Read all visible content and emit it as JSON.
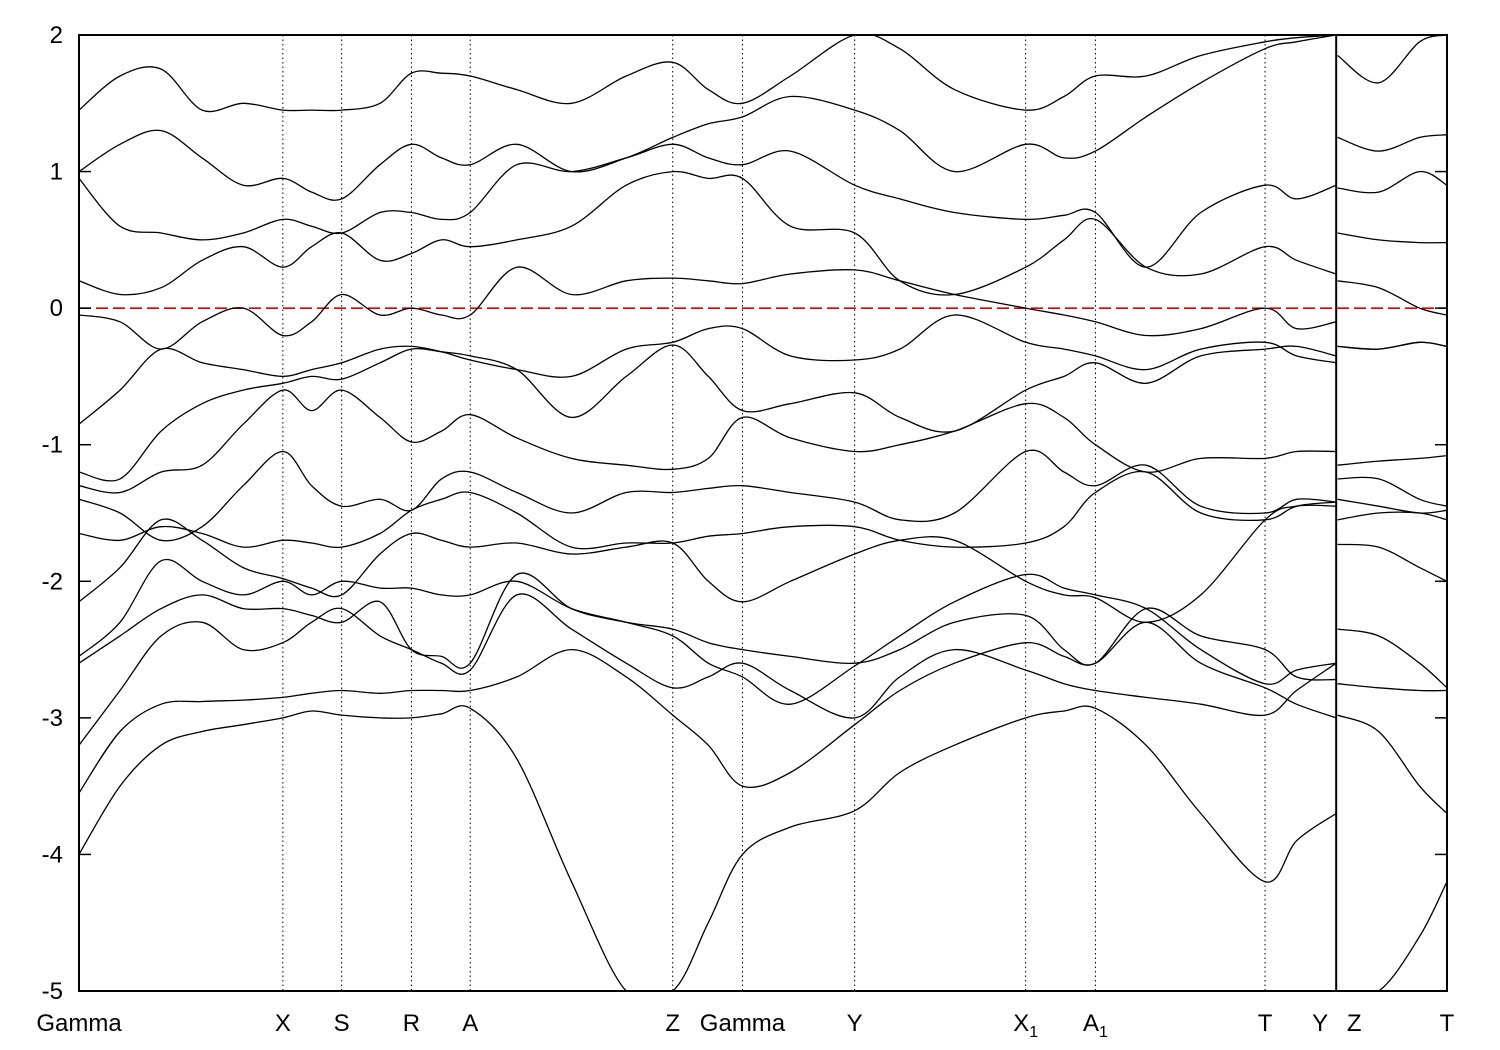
{
  "chart_data": {
    "type": "line",
    "title": "",
    "xlabel": "",
    "ylabel": "",
    "ylim": [
      -5,
      2
    ],
    "xlim": [
      0,
      10.0
    ],
    "yticks": [
      "2",
      "1",
      "0",
      "-1",
      "-2",
      "-3",
      "-4",
      "-5"
    ],
    "ytick_values": [
      2,
      1,
      0,
      -1,
      -2,
      -3,
      -4,
      -5
    ],
    "fermi_level": 0,
    "fermi_color": "#dd0000",
    "line_color": "#000000",
    "kpoints": [
      {
        "pos": 0.0,
        "name": "Gamma",
        "sub": ""
      },
      {
        "pos": 1.49,
        "name": "X",
        "sub": ""
      },
      {
        "pos": 1.92,
        "name": "S",
        "sub": ""
      },
      {
        "pos": 2.43,
        "name": "R",
        "sub": ""
      },
      {
        "pos": 2.86,
        "name": "A",
        "sub": ""
      },
      {
        "pos": 4.34,
        "name": "Z",
        "sub": ""
      },
      {
        "pos": 4.85,
        "name": "Gamma",
        "sub": ""
      },
      {
        "pos": 5.67,
        "name": "Y",
        "sub": ""
      },
      {
        "pos": 6.92,
        "name": "X",
        "sub": "1"
      },
      {
        "pos": 7.43,
        "name": "A",
        "sub": "1"
      },
      {
        "pos": 8.67,
        "name": "T",
        "sub": ""
      },
      {
        "pos": 9.19,
        "name": "Y",
        "sub": ""
      },
      {
        "pos": 9.19,
        "name": "Z",
        "sub": ""
      },
      {
        "pos": 10.0,
        "name": "T",
        "sub": ""
      }
    ],
    "segment_break": 9.19,
    "series": [
      {
        "x": [
          0,
          0.3,
          0.6,
          0.9,
          1.2,
          1.49,
          1.7,
          1.92,
          2.2,
          2.43,
          2.65,
          2.86,
          3.2,
          3.6,
          4.0,
          4.34,
          4.6,
          4.85,
          5.2,
          5.67,
          6.0,
          6.4,
          6.92,
          7.2,
          7.43,
          7.8,
          8.2,
          8.67,
          8.9,
          9.19,
          9.2,
          9.5,
          9.8,
          10.0
        ],
        "y": [
          -4.0,
          -3.5,
          -3.2,
          -3.1,
          -3.05,
          -3.0,
          -2.95,
          -2.98,
          -3.0,
          -3.0,
          -2.97,
          -2.93,
          -3.3,
          -4.2,
          -5.0,
          -5.0,
          -4.5,
          -4.0,
          -3.8,
          -3.68,
          -3.4,
          -3.2,
          -3.0,
          -2.95,
          -2.93,
          -3.2,
          -3.7,
          -4.2,
          -3.9,
          -3.7,
          -5.0,
          -5.0,
          -4.6,
          -4.2
        ]
      },
      {
        "x": [
          0,
          0.3,
          0.6,
          0.9,
          1.2,
          1.49,
          1.7,
          1.92,
          2.2,
          2.43,
          2.65,
          2.86,
          3.2,
          3.6,
          4.0,
          4.34,
          4.6,
          4.85,
          5.2,
          5.67,
          6.0,
          6.4,
          6.92,
          7.2,
          7.43,
          7.8,
          8.2,
          8.67,
          8.9,
          9.19,
          9.2,
          9.5,
          9.8,
          10.0
        ],
        "y": [
          -3.55,
          -3.1,
          -2.9,
          -2.88,
          -2.87,
          -2.85,
          -2.82,
          -2.8,
          -2.82,
          -2.8,
          -2.8,
          -2.8,
          -2.7,
          -2.5,
          -2.7,
          -2.98,
          -3.2,
          -3.5,
          -3.4,
          -3.05,
          -2.8,
          -2.6,
          -2.45,
          -2.55,
          -2.6,
          -2.3,
          -2.6,
          -2.78,
          -2.9,
          -3.0,
          -2.98,
          -3.1,
          -3.5,
          -3.7
        ]
      },
      {
        "x": [
          0,
          0.3,
          0.6,
          0.9,
          1.2,
          1.49,
          1.7,
          1.92,
          2.2,
          2.43,
          2.65,
          2.86,
          3.2,
          3.6,
          4.0,
          4.34,
          4.6,
          4.85,
          5.2,
          5.67,
          6.0,
          6.4,
          6.92,
          7.2,
          7.43,
          7.8,
          8.2,
          8.67,
          8.9,
          9.19,
          9.2,
          9.5,
          9.8,
          10.0
        ],
        "y": [
          -3.2,
          -2.8,
          -2.4,
          -2.3,
          -2.5,
          -2.45,
          -2.3,
          -2.2,
          -2.4,
          -2.5,
          -2.6,
          -2.65,
          -2.1,
          -2.35,
          -2.6,
          -2.78,
          -2.7,
          -2.6,
          -2.8,
          -3.0,
          -2.7,
          -2.5,
          -2.65,
          -2.75,
          -2.8,
          -2.85,
          -2.9,
          -2.98,
          -2.8,
          -2.6,
          -2.75,
          -2.78,
          -2.8,
          -2.8
        ]
      },
      {
        "x": [
          0,
          0.3,
          0.6,
          0.9,
          1.2,
          1.49,
          1.7,
          1.92,
          2.2,
          2.43,
          2.65,
          2.86,
          3.2,
          3.6,
          4.0,
          4.34,
          4.6,
          4.85,
          5.2,
          5.67,
          6.0,
          6.4,
          6.92,
          7.2,
          7.43,
          7.8,
          8.2,
          8.67,
          8.9,
          9.19,
          9.2,
          9.5,
          9.8,
          10.0
        ],
        "y": [
          -2.6,
          -2.4,
          -2.2,
          -2.1,
          -2.2,
          -2.2,
          -2.25,
          -2.3,
          -2.15,
          -2.5,
          -2.55,
          -2.6,
          -1.95,
          -2.2,
          -2.3,
          -2.35,
          -2.45,
          -2.5,
          -2.55,
          -2.6,
          -2.5,
          -2.3,
          -2.25,
          -2.5,
          -2.6,
          -2.2,
          -2.4,
          -2.5,
          -2.7,
          -2.72,
          -2.35,
          -2.4,
          -2.6,
          -2.78
        ]
      },
      {
        "x": [
          0,
          0.3,
          0.6,
          0.9,
          1.2,
          1.49,
          1.7,
          1.92,
          2.2,
          2.43,
          2.65,
          2.86,
          3.2,
          3.6,
          4.0,
          4.34,
          4.6,
          4.85,
          5.2,
          5.67,
          6.0,
          6.4,
          6.92,
          7.2,
          7.43,
          7.8,
          8.2,
          8.67,
          8.9,
          9.19,
          9.2,
          9.5,
          9.8,
          10.0
        ],
        "y": [
          -2.55,
          -2.3,
          -1.85,
          -2.0,
          -2.1,
          -2.0,
          -2.1,
          -2.0,
          -2.05,
          -2.05,
          -2.1,
          -2.1,
          -2.0,
          -2.2,
          -2.3,
          -2.4,
          -2.6,
          -2.7,
          -2.9,
          -2.62,
          -2.4,
          -2.15,
          -1.95,
          -2.05,
          -2.1,
          -2.2,
          -2.5,
          -2.75,
          -2.65,
          -2.6,
          -1.73,
          -1.75,
          -1.9,
          -2.0
        ]
      },
      {
        "x": [
          0,
          0.3,
          0.6,
          0.9,
          1.2,
          1.49,
          1.7,
          1.92,
          2.2,
          2.43,
          2.65,
          2.86,
          3.2,
          3.6,
          4.0,
          4.34,
          4.6,
          4.85,
          5.2,
          5.67,
          6.0,
          6.4,
          6.92,
          7.2,
          7.43,
          7.8,
          8.2,
          8.67,
          8.9,
          9.19,
          9.2,
          9.5,
          9.8,
          10.0
        ],
        "y": [
          -2.15,
          -1.9,
          -1.55,
          -1.7,
          -1.9,
          -1.98,
          -2.05,
          -2.1,
          -1.8,
          -1.65,
          -1.7,
          -1.75,
          -1.72,
          -1.8,
          -1.75,
          -1.72,
          -2.0,
          -2.15,
          -2.0,
          -1.8,
          -1.7,
          -1.7,
          -2.0,
          -2.1,
          -2.12,
          -2.3,
          -2.1,
          -1.55,
          -1.45,
          -1.45,
          -1.55,
          -1.5,
          -1.5,
          -1.55
        ]
      },
      {
        "x": [
          0,
          0.3,
          0.6,
          0.9,
          1.2,
          1.49,
          1.7,
          1.92,
          2.2,
          2.43,
          2.65,
          2.86,
          3.2,
          3.6,
          4.0,
          4.34,
          4.6,
          4.85,
          5.2,
          5.67,
          6.0,
          6.4,
          6.92,
          7.2,
          7.43,
          7.8,
          8.2,
          8.67,
          8.9,
          9.19,
          9.2,
          9.5,
          9.8,
          10.0
        ],
        "y": [
          -1.65,
          -1.7,
          -1.6,
          -1.65,
          -1.75,
          -1.7,
          -1.72,
          -1.75,
          -1.65,
          -1.48,
          -1.4,
          -1.35,
          -1.5,
          -1.75,
          -1.72,
          -1.72,
          -1.67,
          -1.65,
          -1.6,
          -1.6,
          -1.7,
          -1.75,
          -1.72,
          -1.6,
          -1.35,
          -1.2,
          -1.5,
          -1.55,
          -1.45,
          -1.42,
          -1.4,
          -1.45,
          -1.5,
          -1.48
        ]
      },
      {
        "x": [
          0,
          0.3,
          0.6,
          0.9,
          1.2,
          1.49,
          1.7,
          1.92,
          2.2,
          2.43,
          2.65,
          2.86,
          3.2,
          3.6,
          4.0,
          4.34,
          4.6,
          4.85,
          5.2,
          5.67,
          6.0,
          6.4,
          6.92,
          7.2,
          7.43,
          7.8,
          8.2,
          8.67,
          8.9,
          9.19,
          9.2,
          9.5,
          9.8,
          10.0
        ],
        "y": [
          -1.4,
          -1.5,
          -1.7,
          -1.6,
          -1.3,
          -1.05,
          -1.3,
          -1.45,
          -1.4,
          -1.48,
          -1.25,
          -1.2,
          -1.35,
          -1.5,
          -1.35,
          -1.35,
          -1.32,
          -1.3,
          -1.35,
          -1.42,
          -1.55,
          -1.5,
          -1.05,
          -1.2,
          -1.3,
          -1.15,
          -1.45,
          -1.5,
          -1.4,
          -1.42,
          -1.25,
          -1.25,
          -1.4,
          -1.45
        ]
      },
      {
        "x": [
          0,
          0.3,
          0.6,
          0.9,
          1.2,
          1.49,
          1.7,
          1.92,
          2.2,
          2.43,
          2.65,
          2.86,
          3.2,
          3.6,
          4.0,
          4.34,
          4.6,
          4.85,
          5.2,
          5.67,
          6.0,
          6.4,
          6.92,
          7.2,
          7.43,
          7.8,
          8.2,
          8.67,
          8.9,
          9.19,
          9.2,
          9.5,
          9.8,
          10.0
        ],
        "y": [
          -1.3,
          -1.35,
          -1.2,
          -1.15,
          -0.85,
          -0.6,
          -0.75,
          -0.6,
          -0.8,
          -0.98,
          -0.9,
          -0.78,
          -0.95,
          -1.1,
          -1.15,
          -1.18,
          -1.1,
          -0.8,
          -0.95,
          -1.05,
          -1.0,
          -0.9,
          -0.7,
          -0.8,
          -1.0,
          -1.2,
          -1.1,
          -1.1,
          -1.05,
          -1.05,
          -1.15,
          -1.12,
          -1.1,
          -1.08
        ]
      },
      {
        "x": [
          0,
          0.3,
          0.6,
          0.9,
          1.2,
          1.49,
          1.7,
          1.92,
          2.2,
          2.43,
          2.65,
          2.86,
          3.2,
          3.6,
          4.0,
          4.34,
          4.6,
          4.85,
          5.2,
          5.67,
          6.0,
          6.4,
          6.92,
          7.2,
          7.43,
          7.8,
          8.2,
          8.67,
          8.9,
          9.19,
          9.2,
          9.5,
          9.8,
          10.0
        ],
        "y": [
          -1.2,
          -1.25,
          -0.9,
          -0.7,
          -0.6,
          -0.55,
          -0.5,
          -0.52,
          -0.4,
          -0.3,
          -0.32,
          -0.35,
          -0.45,
          -0.8,
          -0.5,
          -0.27,
          -0.5,
          -0.75,
          -0.7,
          -0.62,
          -0.8,
          -0.9,
          -0.6,
          -0.5,
          -0.4,
          -0.55,
          -0.35,
          -0.3,
          -0.28,
          -0.35,
          -0.28,
          -0.3,
          -0.25,
          -0.28
        ]
      },
      {
        "x": [
          0,
          0.3,
          0.6,
          0.9,
          1.2,
          1.49,
          1.7,
          1.92,
          2.2,
          2.43,
          2.65,
          2.86,
          3.2,
          3.6,
          4.0,
          4.34,
          4.6,
          4.85,
          5.2,
          5.67,
          6.0,
          6.4,
          6.92,
          7.2,
          7.43,
          7.8,
          8.2,
          8.67,
          8.9,
          9.19,
          9.2,
          9.5,
          9.8,
          10.0
        ],
        "y": [
          -0.85,
          -0.6,
          -0.3,
          -0.4,
          -0.45,
          -0.5,
          -0.45,
          -0.4,
          -0.3,
          -0.28,
          -0.32,
          -0.38,
          -0.45,
          -0.5,
          -0.3,
          -0.25,
          -0.15,
          -0.15,
          -0.35,
          -0.38,
          -0.3,
          -0.05,
          -0.25,
          -0.3,
          -0.35,
          -0.45,
          -0.3,
          -0.25,
          -0.35,
          -0.4,
          -0.28,
          -0.3,
          -0.25,
          -0.28
        ]
      },
      {
        "x": [
          0,
          0.3,
          0.6,
          0.9,
          1.2,
          1.49,
          1.7,
          1.92,
          2.2,
          2.43,
          2.65,
          2.86,
          3.2,
          3.6,
          4.0,
          4.34,
          4.6,
          4.85,
          5.2,
          5.67,
          6.0,
          6.4,
          6.92,
          7.2,
          7.43,
          7.8,
          8.2,
          8.67,
          8.9,
          9.19,
          9.2,
          9.5,
          9.8,
          10.0
        ],
        "y": [
          -0.05,
          -0.1,
          -0.3,
          -0.1,
          0.0,
          -0.2,
          -0.1,
          0.1,
          -0.05,
          0.0,
          -0.05,
          -0.05,
          0.3,
          0.1,
          0.2,
          0.22,
          0.2,
          0.18,
          0.25,
          0.28,
          0.2,
          0.1,
          0.0,
          -0.05,
          -0.1,
          -0.2,
          -0.15,
          0.0,
          -0.15,
          -0.1,
          0.2,
          0.15,
          0.0,
          -0.05
        ]
      },
      {
        "x": [
          0,
          0.3,
          0.6,
          0.9,
          1.2,
          1.49,
          1.7,
          1.92,
          2.2,
          2.43,
          2.65,
          2.86,
          3.2,
          3.6,
          4.0,
          4.34,
          4.6,
          4.85,
          5.2,
          5.67,
          6.0,
          6.4,
          6.92,
          7.2,
          7.43,
          7.8,
          8.2,
          8.67,
          8.9,
          9.19,
          9.2,
          9.5,
          9.8,
          10.0
        ],
        "y": [
          0.2,
          0.1,
          0.15,
          0.35,
          0.45,
          0.3,
          0.45,
          0.55,
          0.35,
          0.4,
          0.5,
          0.45,
          0.5,
          0.6,
          0.9,
          1.0,
          0.95,
          0.95,
          0.6,
          0.55,
          0.2,
          0.1,
          0.3,
          0.5,
          0.65,
          0.3,
          0.25,
          0.45,
          0.35,
          0.25,
          0.55,
          0.5,
          0.48,
          0.48
        ]
      },
      {
        "x": [
          0,
          0.3,
          0.6,
          0.9,
          1.2,
          1.49,
          1.7,
          1.92,
          2.2,
          2.43,
          2.65,
          2.86,
          3.2,
          3.6,
          4.0,
          4.34,
          4.6,
          4.85,
          5.2,
          5.67,
          6.0,
          6.4,
          6.92,
          7.2,
          7.43,
          7.8,
          8.2,
          8.67,
          8.9,
          9.19,
          9.2,
          9.5,
          9.8,
          10.0
        ],
        "y": [
          0.95,
          0.6,
          0.55,
          0.5,
          0.55,
          0.65,
          0.6,
          0.55,
          0.7,
          0.7,
          0.65,
          0.7,
          1.05,
          1.0,
          1.1,
          1.2,
          1.1,
          1.05,
          1.15,
          0.9,
          0.8,
          0.7,
          0.65,
          0.68,
          0.7,
          0.3,
          0.7,
          0.9,
          0.8,
          0.9,
          0.88,
          0.85,
          1.0,
          0.9
        ]
      },
      {
        "x": [
          0,
          0.3,
          0.6,
          0.9,
          1.2,
          1.49,
          1.7,
          1.92,
          2.2,
          2.43,
          2.65,
          2.86,
          3.2,
          3.6,
          4.0,
          4.34,
          4.6,
          4.85,
          5.2,
          5.67,
          6.0,
          6.4,
          6.92,
          7.2,
          7.43,
          7.8,
          8.2,
          8.67,
          8.9,
          9.19,
          9.2,
          9.5,
          9.8,
          10.0
        ],
        "y": [
          1.0,
          1.2,
          1.3,
          1.1,
          0.9,
          0.95,
          0.85,
          0.8,
          1.05,
          1.2,
          1.1,
          1.05,
          1.2,
          1.0,
          1.1,
          1.25,
          1.35,
          1.4,
          1.55,
          1.45,
          1.3,
          1.0,
          1.2,
          1.1,
          1.15,
          1.4,
          1.65,
          1.9,
          1.95,
          2.0,
          1.25,
          1.15,
          1.25,
          1.27
        ]
      },
      {
        "x": [
          0,
          0.3,
          0.6,
          0.9,
          1.2,
          1.49,
          1.7,
          1.92,
          2.2,
          2.43,
          2.65,
          2.86,
          3.2,
          3.6,
          4.0,
          4.34,
          4.6,
          4.85,
          5.2,
          5.67,
          6.0,
          6.4,
          6.92,
          7.2,
          7.43,
          7.8,
          8.2,
          8.67,
          8.9,
          9.19,
          9.2,
          9.5,
          9.8,
          10.0
        ],
        "y": [
          1.45,
          1.7,
          1.75,
          1.45,
          1.5,
          1.45,
          1.45,
          1.45,
          1.5,
          1.72,
          1.72,
          1.7,
          1.6,
          1.5,
          1.7,
          1.8,
          1.6,
          1.5,
          1.7,
          2.0,
          1.9,
          1.6,
          1.45,
          1.55,
          1.7,
          1.7,
          1.85,
          1.95,
          1.98,
          2.0,
          1.85,
          1.65,
          1.95,
          2.0
        ]
      }
    ]
  }
}
